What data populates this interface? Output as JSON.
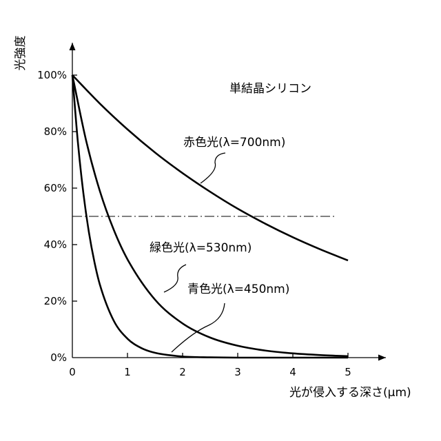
{
  "chart_data": {
    "type": "line",
    "title": "単結晶シリコン",
    "xlabel": "光が侵入する深さ(μm)",
    "ylabel": "光強度",
    "xlim": [
      0,
      5
    ],
    "ylim": [
      0,
      100
    ],
    "xticks": [
      0,
      1,
      2,
      3,
      4,
      5
    ],
    "xtick_labels": [
      "0",
      "1",
      "2",
      "3",
      "4",
      "5"
    ],
    "yticks": [
      0,
      20,
      40,
      60,
      80,
      100
    ],
    "ytick_labels": [
      "0%",
      "20%",
      "40%",
      "60%",
      "80%",
      "100%"
    ],
    "grid": false,
    "legend": "none",
    "reference_line": {
      "y": 50,
      "style": "dash-dot"
    },
    "series": [
      {
        "name": "赤色光(λ=700nm)",
        "x": [
          0,
          0.5,
          1,
          1.5,
          2,
          2.5,
          3,
          3.5,
          4,
          4.5,
          5
        ],
        "y": [
          100,
          89.9,
          80.8,
          72.6,
          65.3,
          58.7,
          52.7,
          47.4,
          42.6,
          38.3,
          34.4
        ]
      },
      {
        "name": "緑色光(λ=530nm)",
        "x": [
          0,
          0.25,
          0.5,
          0.75,
          1,
          1.5,
          2,
          2.5,
          3,
          3.5,
          4,
          4.5,
          5
        ],
        "y": [
          100,
          76.8,
          58.9,
          45.3,
          34.8,
          20.5,
          12.1,
          7.1,
          4.2,
          2.5,
          1.5,
          0.9,
          0.5
        ]
      },
      {
        "name": "青色光(λ=450nm)",
        "x": [
          0,
          0.1,
          0.2,
          0.3,
          0.4,
          0.5,
          0.75,
          1,
          1.25,
          1.5,
          2,
          2.5,
          3,
          5
        ],
        "y": [
          100,
          76.3,
          58.2,
          44.4,
          33.9,
          25.8,
          13.1,
          6.7,
          3.4,
          1.7,
          0.4,
          0.1,
          0,
          0
        ]
      }
    ]
  }
}
